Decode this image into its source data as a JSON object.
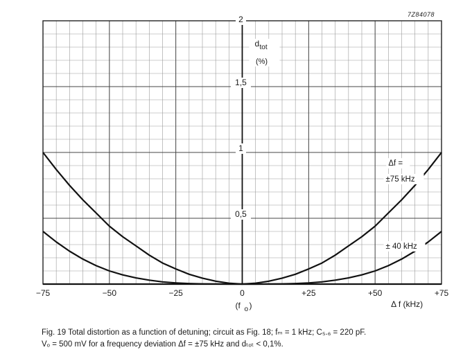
{
  "chart_data": {
    "type": "line",
    "figure_code": "7Z84078",
    "x": {
      "min": -75,
      "max": 75,
      "major_step": 25,
      "minor_step": 5,
      "tick_labels": [
        "−75",
        "−50",
        "−25",
        "0",
        "+25",
        "+50",
        "+75"
      ],
      "label": "Δ f (kHz)",
      "center_label": "(f",
      "center_label_sub": "o",
      "center_label_tail": ")"
    },
    "y": {
      "min": 0,
      "max": 2,
      "major_step": 0.5,
      "minor_step": 0.1,
      "tick_labels": [
        "0,5",
        "1",
        "1,5",
        "2"
      ],
      "label": "d",
      "label_sub": "tot",
      "unit": "(%)"
    },
    "grid": true,
    "series": [
      {
        "name": "Δf = ±75 kHz",
        "x": [
          -75,
          -70,
          -65,
          -60,
          -55,
          -50,
          -45,
          -40,
          -35,
          -30,
          -25,
          -20,
          -15,
          -10,
          -5,
          0,
          5,
          10,
          15,
          20,
          25,
          30,
          35,
          40,
          45,
          50,
          55,
          60,
          65,
          70,
          75
        ],
        "y": [
          1.0,
          0.87,
          0.75,
          0.64,
          0.54,
          0.44,
          0.36,
          0.29,
          0.22,
          0.16,
          0.115,
          0.075,
          0.045,
          0.022,
          0.007,
          0.0,
          0.007,
          0.022,
          0.045,
          0.075,
          0.115,
          0.16,
          0.22,
          0.29,
          0.36,
          0.44,
          0.54,
          0.64,
          0.75,
          0.87,
          1.0
        ]
      },
      {
        "name": "± 40 kHz",
        "x": [
          -75,
          -70,
          -65,
          -60,
          -55,
          -50,
          -45,
          -40,
          -35,
          -30,
          -25,
          -20,
          -15,
          -10,
          -5,
          0,
          5,
          10,
          15,
          20,
          25,
          30,
          35,
          40,
          45,
          50,
          55,
          60,
          65,
          70,
          75
        ],
        "y": [
          0.4,
          0.32,
          0.25,
          0.19,
          0.14,
          0.1,
          0.07,
          0.047,
          0.03,
          0.017,
          0.009,
          0.004,
          0.0015,
          0.0005,
          0.0,
          0.0,
          0.0,
          0.0005,
          0.0015,
          0.004,
          0.009,
          0.017,
          0.03,
          0.047,
          0.07,
          0.1,
          0.14,
          0.19,
          0.25,
          0.32,
          0.4
        ]
      }
    ],
    "annotations": [
      {
        "text": "Δf =",
        "series": 0
      },
      {
        "text": "±75 kHz",
        "series": 0
      },
      {
        "text": "± 40 kHz",
        "series": 1
      }
    ]
  },
  "caption": {
    "line1": "Fig. 19  Total distortion as a function of detuning; circuit as Fig. 18; fₘ = 1 kHz; C₅.₆ = 220 pF.",
    "line2": "Vₒ = 500 mV for a frequency deviation Δf = ±75 kHz and dₜₒₜ < 0,1%."
  }
}
